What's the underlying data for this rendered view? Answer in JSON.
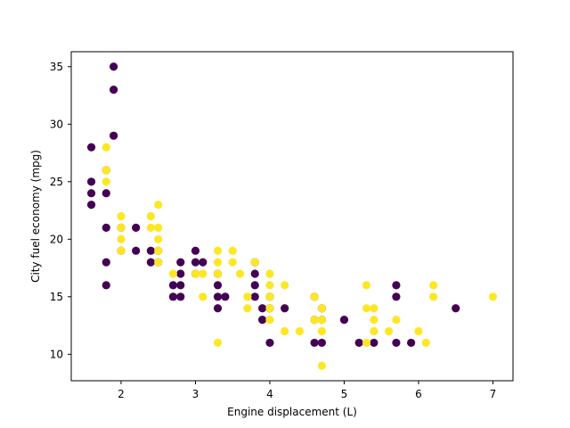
{
  "chart_data": {
    "type": "scatter",
    "title": "",
    "xlabel": "Engine displacement (L)",
    "ylabel": "City fuel economy (mpg)",
    "xlim": [
      1.33,
      7.27
    ],
    "ylim": [
      7.7,
      36.3
    ],
    "xticks": [
      2,
      3,
      4,
      5,
      6,
      7
    ],
    "yticks": [
      10,
      15,
      20,
      25,
      30,
      35
    ],
    "grid": false,
    "series": [
      {
        "color": "#440154",
        "points": [
          [
            1.6,
            28
          ],
          [
            1.6,
            25
          ],
          [
            1.6,
            24
          ],
          [
            1.6,
            23
          ],
          [
            1.8,
            24
          ],
          [
            1.8,
            21
          ],
          [
            1.8,
            18
          ],
          [
            1.8,
            16
          ],
          [
            1.8,
            26
          ],
          [
            1.9,
            35
          ],
          [
            1.9,
            33
          ],
          [
            1.9,
            29
          ],
          [
            2.0,
            21
          ],
          [
            2.0,
            19
          ],
          [
            2.2,
            21
          ],
          [
            2.2,
            19
          ],
          [
            2.4,
            19
          ],
          [
            2.4,
            18
          ],
          [
            2.5,
            19
          ],
          [
            2.5,
            18
          ],
          [
            2.7,
            16
          ],
          [
            2.7,
            15
          ],
          [
            2.8,
            18
          ],
          [
            2.8,
            17
          ],
          [
            2.8,
            16
          ],
          [
            2.8,
            15
          ],
          [
            3.0,
            19
          ],
          [
            3.0,
            18
          ],
          [
            3.0,
            17
          ],
          [
            3.1,
            18
          ],
          [
            3.3,
            17
          ],
          [
            3.3,
            16
          ],
          [
            3.3,
            15
          ],
          [
            3.3,
            14
          ],
          [
            3.4,
            15
          ],
          [
            3.8,
            18
          ],
          [
            3.8,
            17
          ],
          [
            3.8,
            16
          ],
          [
            3.8,
            15
          ],
          [
            3.9,
            14
          ],
          [
            3.9,
            13
          ],
          [
            4.0,
            15
          ],
          [
            4.0,
            14
          ],
          [
            4.0,
            11
          ],
          [
            4.2,
            14
          ],
          [
            4.6,
            15
          ],
          [
            4.6,
            13
          ],
          [
            4.6,
            11
          ],
          [
            4.7,
            14
          ],
          [
            4.7,
            13
          ],
          [
            4.7,
            11
          ],
          [
            5.0,
            13
          ],
          [
            5.2,
            11
          ],
          [
            5.4,
            11
          ],
          [
            5.7,
            16
          ],
          [
            5.7,
            15
          ],
          [
            5.7,
            11
          ],
          [
            5.9,
            11
          ],
          [
            6.5,
            14
          ]
        ]
      },
      {
        "color": "#fde725",
        "points": [
          [
            1.8,
            28
          ],
          [
            1.8,
            26
          ],
          [
            1.8,
            25
          ],
          [
            2.0,
            22
          ],
          [
            2.0,
            21
          ],
          [
            2.0,
            20
          ],
          [
            2.0,
            19
          ],
          [
            2.4,
            22
          ],
          [
            2.4,
            21
          ],
          [
            2.5,
            23
          ],
          [
            2.5,
            21
          ],
          [
            2.5,
            20
          ],
          [
            2.5,
            19
          ],
          [
            2.5,
            18
          ],
          [
            2.7,
            17
          ],
          [
            3.0,
            17
          ],
          [
            3.1,
            17
          ],
          [
            3.1,
            15
          ],
          [
            3.3,
            19
          ],
          [
            3.3,
            18
          ],
          [
            3.3,
            17
          ],
          [
            3.3,
            11
          ],
          [
            3.5,
            19
          ],
          [
            3.5,
            18
          ],
          [
            3.6,
            17
          ],
          [
            3.7,
            15
          ],
          [
            3.7,
            14
          ],
          [
            3.8,
            18
          ],
          [
            4.0,
            17
          ],
          [
            4.0,
            16
          ],
          [
            4.0,
            15
          ],
          [
            4.0,
            14
          ],
          [
            4.0,
            13
          ],
          [
            4.2,
            16
          ],
          [
            4.2,
            12
          ],
          [
            4.4,
            12
          ],
          [
            4.6,
            15
          ],
          [
            4.6,
            13
          ],
          [
            4.7,
            14
          ],
          [
            4.7,
            13
          ],
          [
            4.7,
            12
          ],
          [
            4.7,
            9
          ],
          [
            5.3,
            16
          ],
          [
            5.3,
            14
          ],
          [
            5.3,
            11
          ],
          [
            5.4,
            14
          ],
          [
            5.4,
            13
          ],
          [
            5.4,
            12
          ],
          [
            5.6,
            12
          ],
          [
            5.7,
            13
          ],
          [
            6.0,
            12
          ],
          [
            6.1,
            11
          ],
          [
            6.2,
            16
          ],
          [
            6.2,
            15
          ],
          [
            7.0,
            15
          ]
        ]
      }
    ]
  }
}
